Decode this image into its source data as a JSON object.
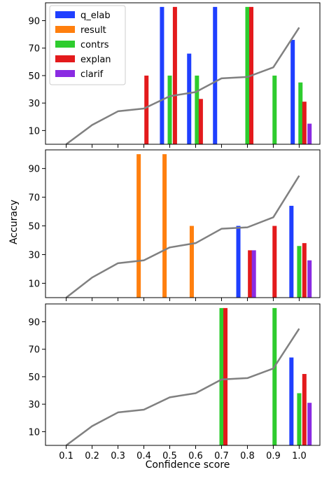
{
  "chart_data": {
    "type": "bar",
    "xlabel": "Confidence score",
    "ylabel": "Accuracy",
    "xlim": [
      0.02,
      1.08
    ],
    "ylim": [
      0,
      103
    ],
    "x_ticks": [
      "0.1",
      "0.2",
      "0.3",
      "0.4",
      "0.5",
      "0.6",
      "0.7",
      "0.8",
      "0.9",
      "1.0"
    ],
    "y_ticks": [
      "10",
      "30",
      "50",
      "70",
      "90"
    ],
    "grid": false,
    "legend_position": "top-left",
    "legend": [
      {
        "name": "q_elab",
        "color": "#1f3fff"
      },
      {
        "name": "result",
        "color": "#ff7f0e"
      },
      {
        "name": "contrs",
        "color": "#2ecc2e"
      },
      {
        "name": "explan",
        "color": "#e31a1c"
      },
      {
        "name": "clarif",
        "color": "#8a2be2"
      }
    ],
    "line_color": "#808080",
    "panels": [
      {
        "line": {
          "x": [
            0.1,
            0.2,
            0.3,
            0.4,
            0.5,
            0.6,
            0.7,
            0.8,
            0.9,
            1.0
          ],
          "y": [
            0,
            14,
            24,
            26,
            35,
            38,
            48,
            49,
            56,
            85
          ]
        },
        "bars": [
          {
            "series": "explan",
            "x": 0.41,
            "y": 50
          },
          {
            "series": "q_elab",
            "x": 0.47,
            "y": 100
          },
          {
            "series": "contrs",
            "x": 0.5,
            "y": 50
          },
          {
            "series": "explan",
            "x": 0.52,
            "y": 100
          },
          {
            "series": "q_elab",
            "x": 0.575,
            "y": 66
          },
          {
            "series": "contrs",
            "x": 0.605,
            "y": 50
          },
          {
            "series": "explan",
            "x": 0.62,
            "y": 33
          },
          {
            "series": "q_elab",
            "x": 0.675,
            "y": 100
          },
          {
            "series": "contrs",
            "x": 0.8,
            "y": 100
          },
          {
            "series": "explan",
            "x": 0.815,
            "y": 100
          },
          {
            "series": "contrs",
            "x": 0.905,
            "y": 50
          },
          {
            "series": "q_elab",
            "x": 0.975,
            "y": 76
          },
          {
            "series": "contrs",
            "x": 1.005,
            "y": 45
          },
          {
            "series": "explan",
            "x": 1.02,
            "y": 31
          },
          {
            "series": "clarif",
            "x": 1.04,
            "y": 15
          }
        ]
      },
      {
        "line": {
          "x": [
            0.1,
            0.2,
            0.3,
            0.4,
            0.5,
            0.6,
            0.7,
            0.8,
            0.9,
            1.0
          ],
          "y": [
            0,
            14,
            24,
            26,
            35,
            38,
            48,
            49,
            56,
            85
          ]
        },
        "bars": [
          {
            "series": "result",
            "x": 0.38,
            "y": 100
          },
          {
            "series": "result",
            "x": 0.48,
            "y": 100
          },
          {
            "series": "result",
            "x": 0.585,
            "y": 50
          },
          {
            "series": "q_elab",
            "x": 0.765,
            "y": 50
          },
          {
            "series": "explan",
            "x": 0.81,
            "y": 33
          },
          {
            "series": "clarif",
            "x": 0.825,
            "y": 33
          },
          {
            "series": "explan",
            "x": 0.905,
            "y": 50
          },
          {
            "series": "q_elab",
            "x": 0.97,
            "y": 64
          },
          {
            "series": "contrs",
            "x": 1.0,
            "y": 36
          },
          {
            "series": "explan",
            "x": 1.02,
            "y": 38
          },
          {
            "series": "clarif",
            "x": 1.04,
            "y": 26
          }
        ]
      },
      {
        "line": {
          "x": [
            0.1,
            0.2,
            0.3,
            0.4,
            0.5,
            0.6,
            0.7,
            0.8,
            0.9,
            1.0
          ],
          "y": [
            0,
            14,
            24,
            26,
            35,
            38,
            48,
            49,
            56,
            85
          ]
        },
        "bars": [
          {
            "series": "contrs",
            "x": 0.7,
            "y": 100
          },
          {
            "series": "explan",
            "x": 0.715,
            "y": 100
          },
          {
            "series": "contrs",
            "x": 0.905,
            "y": 100
          },
          {
            "series": "q_elab",
            "x": 0.97,
            "y": 64
          },
          {
            "series": "contrs",
            "x": 1.0,
            "y": 38
          },
          {
            "series": "explan",
            "x": 1.02,
            "y": 52
          },
          {
            "series": "clarif",
            "x": 1.04,
            "y": 31
          }
        ]
      }
    ]
  }
}
